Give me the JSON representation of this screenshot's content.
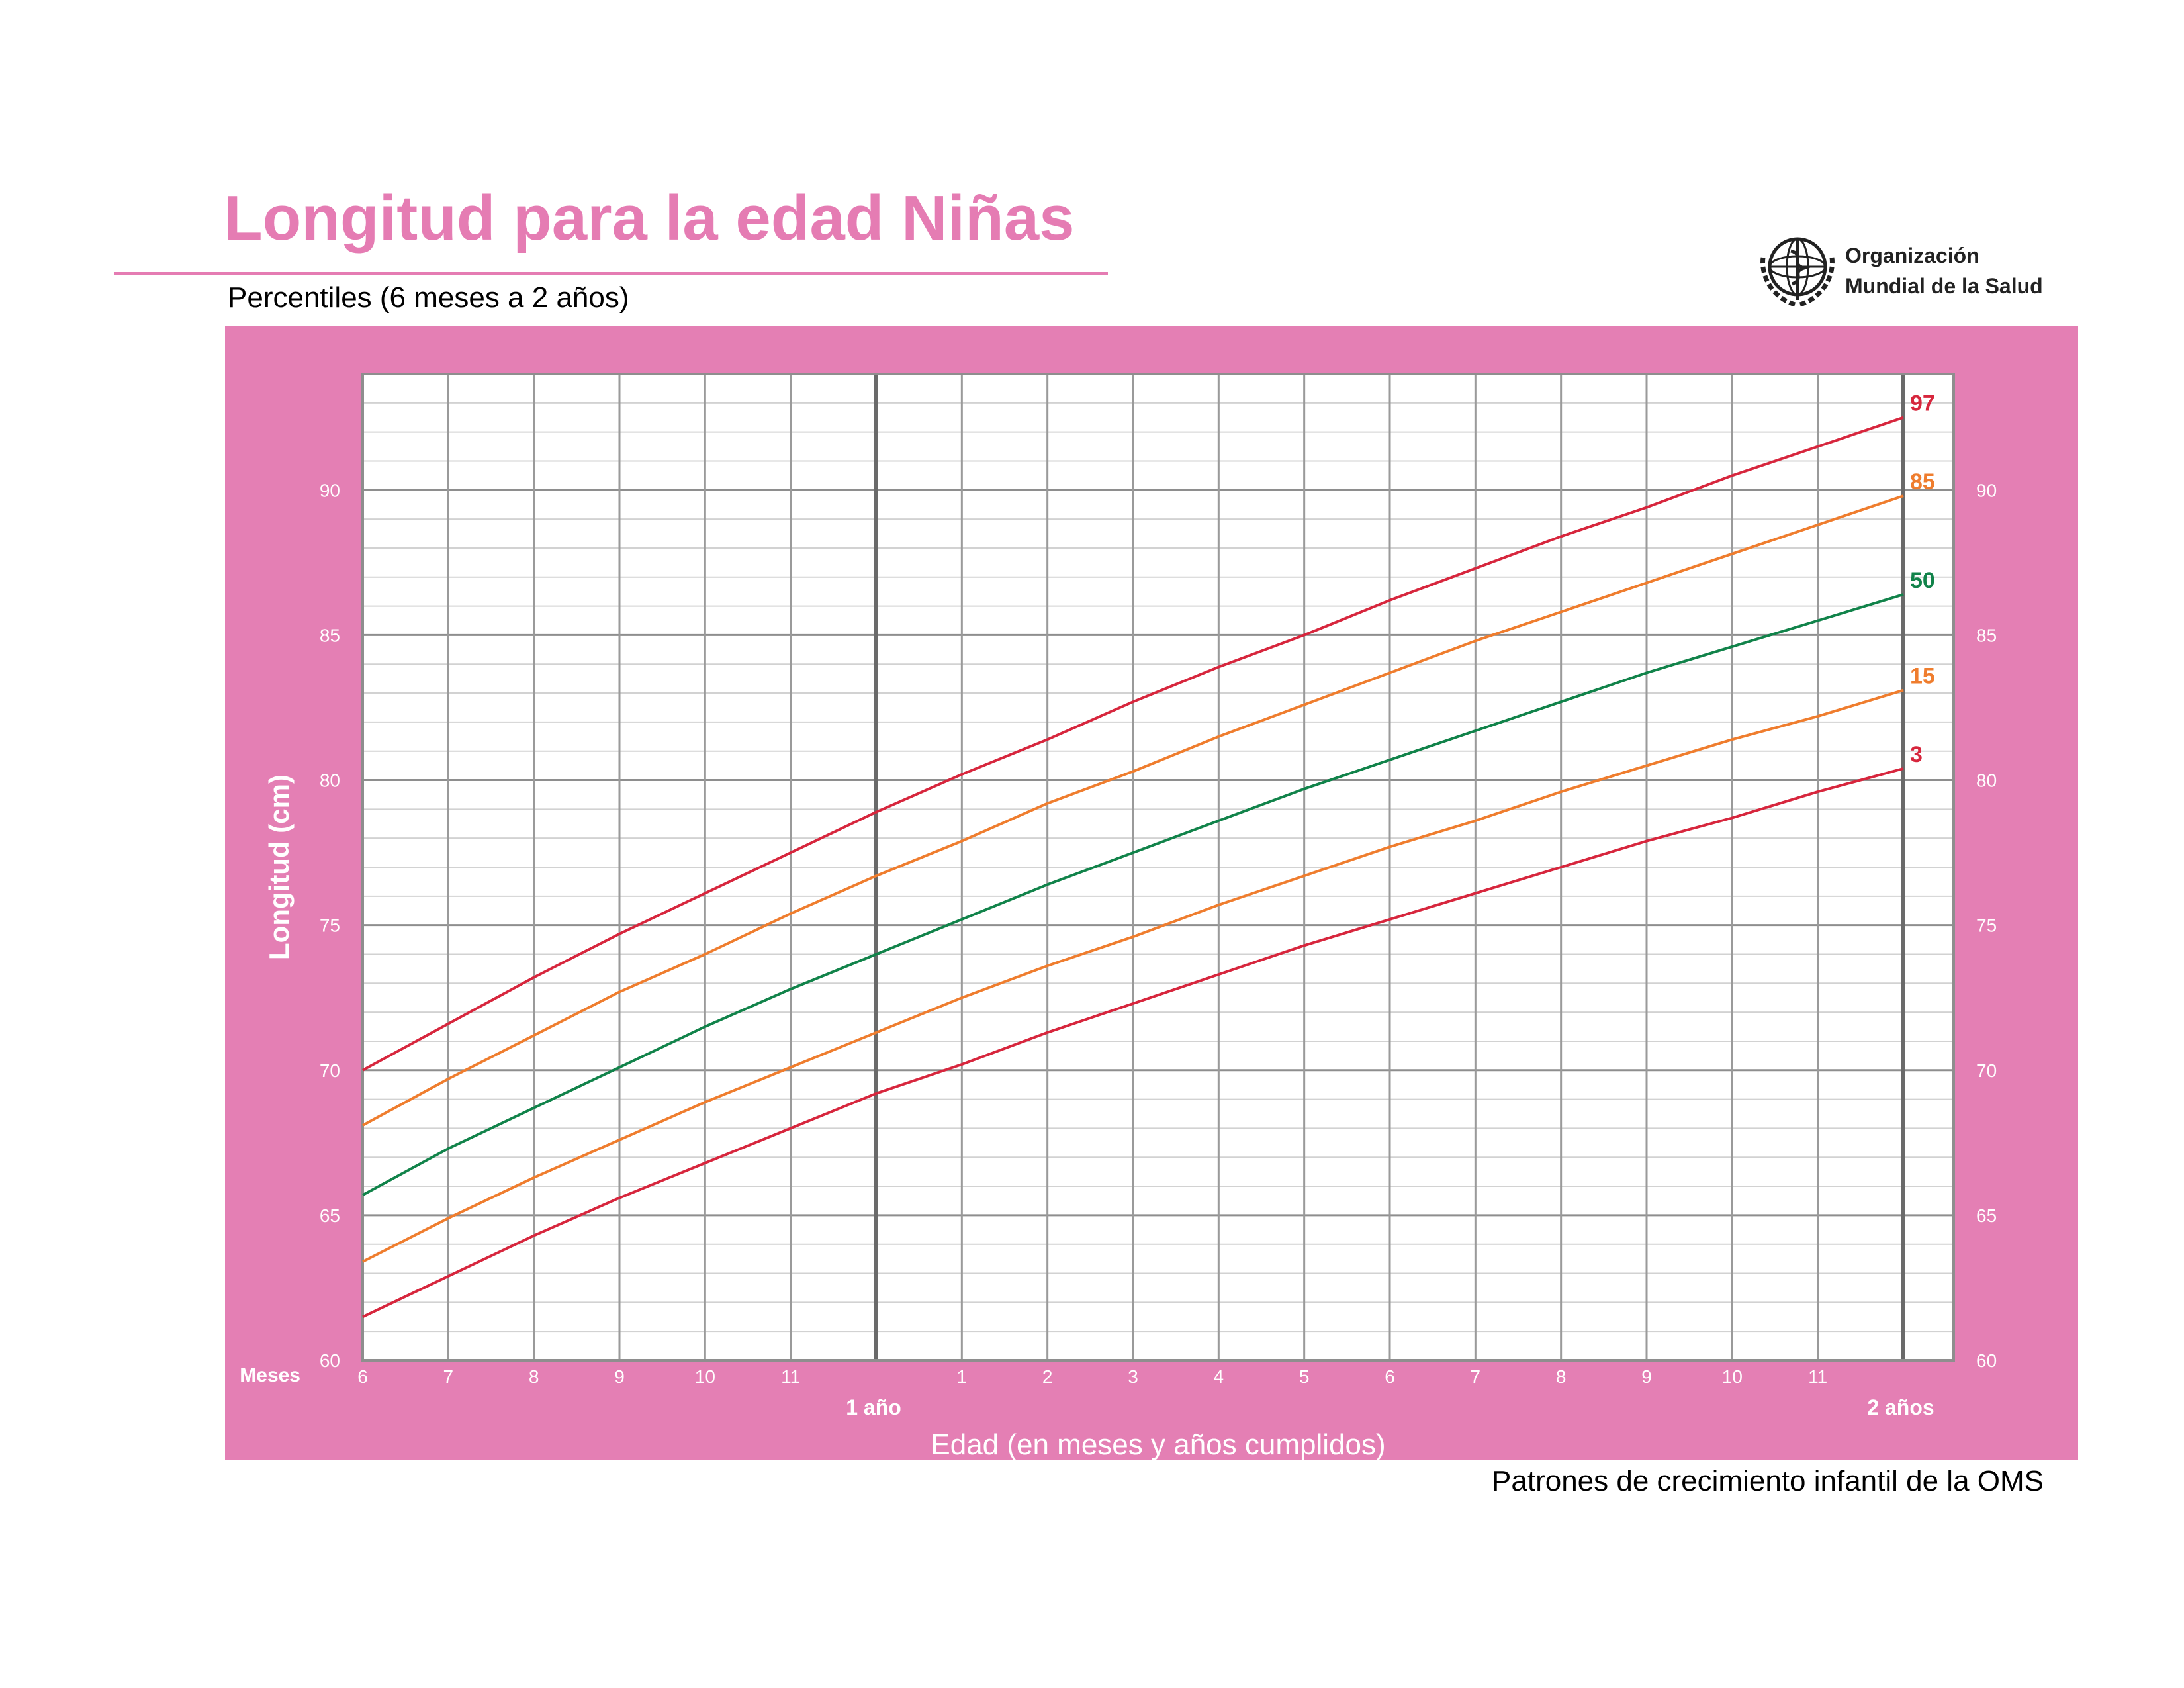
{
  "header": {
    "title": "Longitud para la edad Niñas",
    "subtitle": "Percentiles (6 meses a 2 años)"
  },
  "organization": {
    "line1": "Organización",
    "line2": "Mundial de la Salud",
    "emblem_icon": "who-emblem-icon"
  },
  "footer": {
    "text": "Patrones de crecimiento infantil de la OMS"
  },
  "colors": {
    "brand_pink": "#e57cb3",
    "panel_pink": "#e47fb4",
    "p3": "#d7263d",
    "p15": "#ef7d2e",
    "p50": "#11834a",
    "p85": "#ef7d2e",
    "p97": "#d7263d"
  },
  "chart_data": {
    "type": "line",
    "title": "Longitud para la edad Niñas",
    "subtitle": "Percentiles (6 meses a 2 años)",
    "xlabel": "Edad (en meses y años cumplidos)",
    "ylabel": "Longitud (cm)",
    "x_unit_label": "Meses",
    "xlim": [
      6,
      24
    ],
    "ylim": [
      60,
      94
    ],
    "yticks": [
      60,
      65,
      70,
      75,
      80,
      85,
      90
    ],
    "x_ticks": [
      {
        "month": 6,
        "label": "6"
      },
      {
        "month": 7,
        "label": "7"
      },
      {
        "month": 8,
        "label": "8"
      },
      {
        "month": 9,
        "label": "9"
      },
      {
        "month": 10,
        "label": "10"
      },
      {
        "month": 11,
        "label": "11"
      },
      {
        "month": 13,
        "label": "1"
      },
      {
        "month": 14,
        "label": "2"
      },
      {
        "month": 15,
        "label": "3"
      },
      {
        "month": 16,
        "label": "4"
      },
      {
        "month": 17,
        "label": "5"
      },
      {
        "month": 18,
        "label": "6"
      },
      {
        "month": 19,
        "label": "7"
      },
      {
        "month": 20,
        "label": "8"
      },
      {
        "month": 21,
        "label": "9"
      },
      {
        "month": 22,
        "label": "10"
      },
      {
        "month": 23,
        "label": "11"
      }
    ],
    "year_marks": [
      {
        "month": 12,
        "label": "1 año"
      },
      {
        "month": 24,
        "label": "2 años"
      }
    ],
    "grid": true,
    "x": [
      6,
      7,
      8,
      9,
      10,
      11,
      12,
      13,
      14,
      15,
      16,
      17,
      18,
      19,
      20,
      21,
      22,
      23,
      24
    ],
    "series": [
      {
        "name": "97",
        "color": "#d7263d",
        "values": [
          70.0,
          71.6,
          73.2,
          74.7,
          76.1,
          77.5,
          78.9,
          80.2,
          81.4,
          82.7,
          83.9,
          85.0,
          86.2,
          87.3,
          88.4,
          89.4,
          90.5,
          91.5,
          92.5
        ]
      },
      {
        "name": "85",
        "color": "#ef7d2e",
        "values": [
          68.1,
          69.7,
          71.2,
          72.7,
          74.0,
          75.4,
          76.7,
          77.9,
          79.2,
          80.3,
          81.5,
          82.6,
          83.7,
          84.8,
          85.8,
          86.8,
          87.8,
          88.8,
          89.8
        ]
      },
      {
        "name": "50",
        "color": "#11834a",
        "values": [
          65.7,
          67.3,
          68.7,
          70.1,
          71.5,
          72.8,
          74.0,
          75.2,
          76.4,
          77.5,
          78.6,
          79.7,
          80.7,
          81.7,
          82.7,
          83.7,
          84.6,
          85.5,
          86.4
        ]
      },
      {
        "name": "15",
        "color": "#ef7d2e",
        "values": [
          63.4,
          64.9,
          66.3,
          67.6,
          68.9,
          70.1,
          71.3,
          72.5,
          73.6,
          74.6,
          75.7,
          76.7,
          77.7,
          78.6,
          79.6,
          80.5,
          81.4,
          82.2,
          83.1
        ]
      },
      {
        "name": "3",
        "color": "#d7263d",
        "values": [
          61.5,
          62.9,
          64.3,
          65.6,
          66.8,
          68.0,
          69.2,
          70.2,
          71.3,
          72.3,
          73.3,
          74.3,
          75.2,
          76.1,
          77.0,
          77.9,
          78.7,
          79.6,
          80.4
        ]
      }
    ]
  }
}
